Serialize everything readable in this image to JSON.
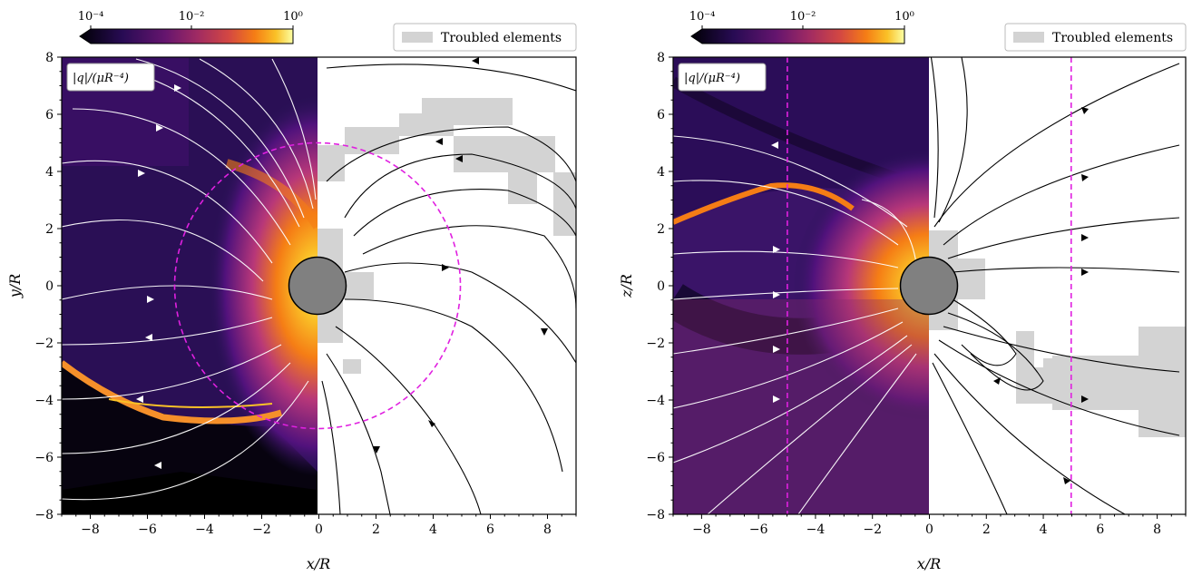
{
  "panels": [
    {
      "id": "left",
      "ylabel": "y/R",
      "xlabel": "x/R",
      "quantity_label": "|q|/(μR⁻⁴)",
      "legend_label": "Troubled elements",
      "colorbar_ticks": [
        "10⁻⁴",
        "10⁻²",
        "10⁰"
      ],
      "xticks": [
        "−8",
        "−6",
        "−4",
        "−2",
        "0",
        "2",
        "4",
        "6",
        "8"
      ],
      "yticks": [
        "8",
        "6",
        "4",
        "2",
        "0",
        "−2",
        "−4",
        "−6",
        "−8"
      ],
      "guide": "circle",
      "guide_radius": 5
    },
    {
      "id": "right",
      "ylabel": "z/R",
      "xlabel": "x/R",
      "quantity_label": "|q|/(μR⁻⁴)",
      "legend_label": "Troubled elements",
      "colorbar_ticks": [
        "10⁻⁴",
        "10⁻²",
        "10⁰"
      ],
      "xticks": [
        "−8",
        "−6",
        "−4",
        "−2",
        "0",
        "2",
        "4",
        "6",
        "8"
      ],
      "yticks": [
        "8",
        "6",
        "4",
        "2",
        "0",
        "−2",
        "−4",
        "−6",
        "−8"
      ],
      "guide": "vertical-lines",
      "guide_x": [
        -5,
        5
      ]
    }
  ],
  "chart_data": [
    {
      "type": "heatmap",
      "xlabel": "x/R",
      "ylabel": "y/R",
      "xlim": [
        -9,
        9
      ],
      "ylim": [
        -8,
        8
      ],
      "colorbar": {
        "label": "|q|/(μR⁻⁴)",
        "scale": "log",
        "range": [
          0.0001,
          1
        ],
        "ticks": [
          0.0001,
          0.01,
          1
        ],
        "colormap": "inferno"
      },
      "legend": {
        "entries": [
          "Troubled elements"
        ],
        "placement": "top-right"
      },
      "body_radius": 1,
      "guide_circle_radius": 5,
      "guide_color": "#e020e0",
      "troubled_color": "#d3d3d3"
    },
    {
      "type": "heatmap",
      "xlabel": "x/R",
      "ylabel": "z/R",
      "xlim": [
        -9,
        9
      ],
      "ylim": [
        -8,
        8
      ],
      "colorbar": {
        "label": "|q|/(μR⁻⁴)",
        "scale": "log",
        "range": [
          0.0001,
          1
        ],
        "ticks": [
          0.0001,
          0.01,
          1
        ],
        "colormap": "inferno"
      },
      "legend": {
        "entries": [
          "Troubled elements"
        ],
        "placement": "top-right"
      },
      "body_radius": 1,
      "guide_vertical_lines_x": [
        -5,
        5
      ],
      "guide_color": "#e020e0",
      "troubled_color": "#d3d3d3"
    }
  ]
}
